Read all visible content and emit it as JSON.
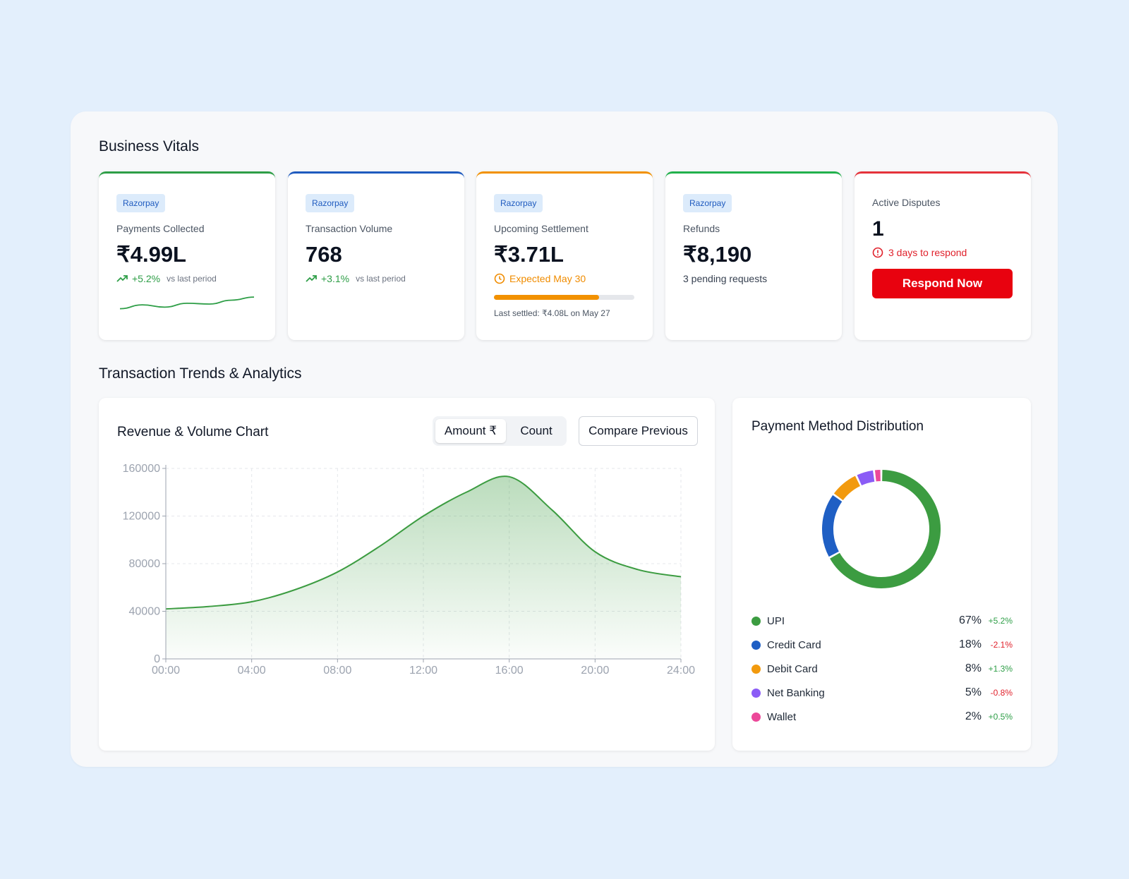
{
  "business_vitals": {
    "title": "Business Vitals",
    "cards": [
      {
        "badge": "Razorpay",
        "label": "Payments Collected",
        "value": "₹4.99L",
        "trend_pct": "+5.2%",
        "trend_vs": "vs last period",
        "accent": "#2e9e47"
      },
      {
        "badge": "Razorpay",
        "label": "Transaction Volume",
        "value": "768",
        "trend_pct": "+3.1%",
        "trend_vs": "vs last period",
        "accent": "#1f5bbf"
      },
      {
        "badge": "Razorpay",
        "label": "Upcoming Settlement",
        "value": "₹3.71L",
        "expected": "Expected May 30",
        "progress": 0.75,
        "last_settled": "Last settled: ₹4.08L on May 27",
        "accent": "#f29100"
      },
      {
        "badge": "Razorpay",
        "label": "Refunds",
        "value": "₹8,190",
        "sub": "3 pending requests",
        "accent": "#22b14c"
      },
      {
        "label": "Active Disputes",
        "value": "1",
        "warning": "3 days to respond",
        "button": "Respond Now",
        "accent": "#e5333b"
      }
    ]
  },
  "analytics": {
    "title": "Transaction Trends & Analytics",
    "chart_card": {
      "title": "Revenue & Volume Chart",
      "toggle": [
        "Amount ₹",
        "Count"
      ],
      "active_toggle": "Amount ₹",
      "compare_button": "Compare Previous"
    },
    "distribution": {
      "title": "Payment Method Distribution",
      "items": [
        {
          "name": "UPI",
          "pct": "67%",
          "change": "+5.2%",
          "color": "#3c9c41",
          "positive": true
        },
        {
          "name": "Credit Card",
          "pct": "18%",
          "change": "-2.1%",
          "color": "#1f5fc4",
          "positive": false
        },
        {
          "name": "Debit Card",
          "pct": "8%",
          "change": "+1.3%",
          "color": "#f29a0e",
          "positive": true
        },
        {
          "name": "Net Banking",
          "pct": "5%",
          "change": "-0.8%",
          "color": "#8b5cf6",
          "positive": false
        },
        {
          "name": "Wallet",
          "pct": "2%",
          "change": "+0.5%",
          "color": "#ec4899",
          "positive": true
        }
      ]
    }
  },
  "chart_data": {
    "type": "area",
    "x": [
      "00:00",
      "02:00",
      "04:00",
      "06:00",
      "08:00",
      "10:00",
      "12:00",
      "14:00",
      "16:00",
      "18:00",
      "20:00",
      "22:00",
      "24:00"
    ],
    "x_ticks": [
      "00:00",
      "04:00",
      "08:00",
      "12:00",
      "16:00",
      "20:00",
      "24:00"
    ],
    "series": [
      {
        "values": [
          42000,
          44000,
          48000,
          58000,
          73000,
          95000,
          120000,
          140000,
          153000,
          125000,
          90000,
          75000,
          69000
        ],
        "color": "#3c9c41"
      }
    ],
    "y_ticks": [
      0,
      40000,
      80000,
      120000,
      160000
    ],
    "ylim": [
      0,
      160000
    ],
    "grid": true
  },
  "sparkline": [
    0.2,
    0.45,
    0.3,
    0.55,
    0.5,
    0.75,
    0.95
  ]
}
